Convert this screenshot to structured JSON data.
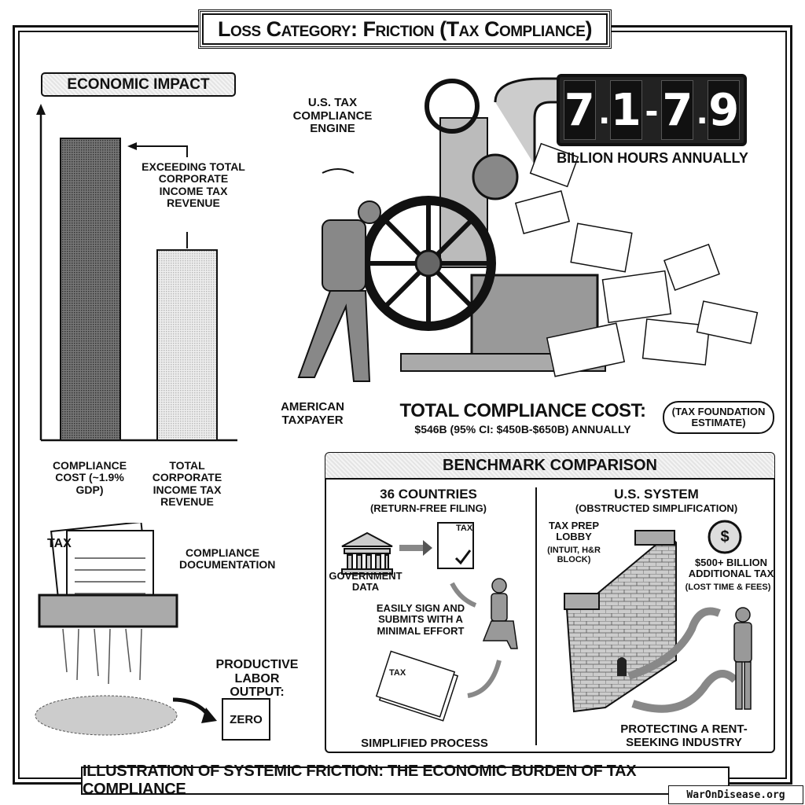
{
  "title": "Loss Category: Friction (Tax Compliance)",
  "economic_impact": {
    "heading": "ECONOMIC IMPACT",
    "annotation": "EXCEEDING TOTAL CORPORATE INCOME TAX REVENUE",
    "bars": [
      {
        "label": "COMPLIANCE COST (~1.9% GDP)",
        "relative_height": 1.0,
        "color": "#555555"
      },
      {
        "label": "TOTAL CORPORATE INCOME TAX REVENUE",
        "relative_height": 0.63,
        "color": "#cccccc"
      }
    ]
  },
  "engine": {
    "label": "U.S. TAX COMPLIANCE ENGINE",
    "taxpayer_label": "AMERICAN TAXPAYER",
    "counter_digits": [
      "7",
      ".",
      "1",
      "-",
      "7",
      ".",
      "9"
    ],
    "counter_text": "7.1-7.9",
    "counter_caption": "BILLION HOURS ANNUALLY",
    "total_cost_title": "TOTAL COMPLIANCE COST:",
    "total_cost_detail": "$546B (95% CI: $450B-$650B) ANNUALLY",
    "source_note": "(TAX FOUNDATION ESTIMATE)"
  },
  "shredder": {
    "doc_label": "TAX",
    "label": "COMPLIANCE DOCUMENTATION",
    "output_label": "PRODUCTIVE LABOR OUTPUT:",
    "output_value": "ZERO"
  },
  "benchmark": {
    "heading": "BENCHMARK COMPARISON",
    "left": {
      "title": "36 COUNTRIES",
      "subtitle": "(RETURN-FREE FILING)",
      "gov_label": "GOVERNMENT DATA",
      "doc_label": "TAX",
      "step_label": "EASILY SIGN AND SUBMITS WITH A MINIMAL EFFORT",
      "footer": "SIMPLIFIED PROCESS"
    },
    "right": {
      "title": "U.S. SYSTEM",
      "subtitle": "(OBSTRUCTED SIMPLIFICATION)",
      "lobby_label": "TAX PREP LOBBY",
      "lobby_detail": "(INTUIT, H&R BLOCK)",
      "cost_label": "$500+ BILLION ADDITIONAL TAX",
      "cost_detail": "(LOST TIME & FEES)",
      "coin": "$",
      "footer": "PROTECTING A RENT-SEEKING INDUSTRY"
    }
  },
  "caption": "ILLUSTRATION OF SYSTEMIC FRICTION: THE ECONOMIC BURDEN OF TAX COMPLIANCE",
  "watermark": "WarOnDisease.org"
}
